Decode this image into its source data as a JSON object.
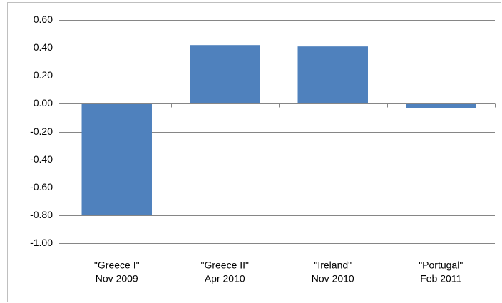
{
  "chart_data": {
    "type": "bar",
    "categories": [
      [
        "\"Greece I\"",
        "Nov 2009"
      ],
      [
        "\"Greece II\"",
        "Apr 2010"
      ],
      [
        "\"Ireland\"",
        "Nov 2010"
      ],
      [
        "\"Portugal\"",
        "Feb 2011"
      ]
    ],
    "values": [
      -0.8,
      0.42,
      0.41,
      -0.03
    ],
    "color": "#4f81bd",
    "ylim": [
      -1.0,
      0.6
    ],
    "yticks": [
      {
        "value": -1.0,
        "label": "-1.00"
      },
      {
        "value": -0.8,
        "label": "-0.80"
      },
      {
        "value": -0.6,
        "label": "-0.60"
      },
      {
        "value": -0.4,
        "label": "-0.40"
      },
      {
        "value": -0.2,
        "label": "-0.20"
      },
      {
        "value": 0,
        "label": "0.00"
      },
      {
        "value": 0.2,
        "label": "0.20"
      },
      {
        "value": 0.4,
        "label": "0.40"
      },
      {
        "value": 0.6,
        "label": "0.60"
      }
    ],
    "grid": true
  }
}
